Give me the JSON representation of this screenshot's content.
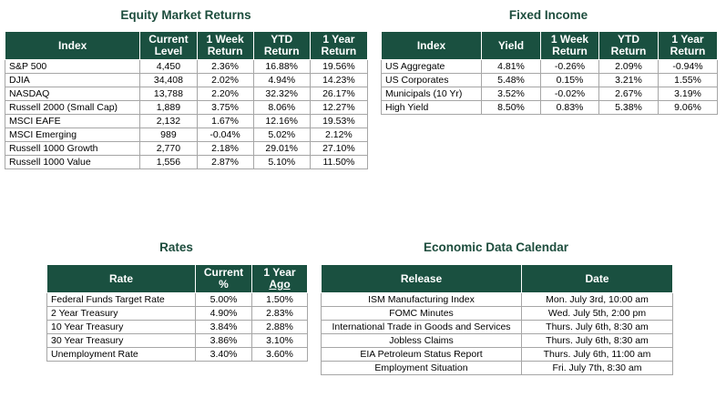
{
  "equity": {
    "title": "Equity Market Returns",
    "headers": {
      "index": "Index",
      "level1": "Current",
      "level2": "Level",
      "week1": "1 Week",
      "week2": "Return",
      "ytd1": "YTD",
      "ytd2": "Return",
      "year1": "1 Year",
      "year2": "Return"
    },
    "rows": [
      {
        "name": "S&P 500",
        "level": "4,450",
        "week": "2.36%",
        "ytd": "16.88%",
        "year": "19.56%"
      },
      {
        "name": "DJIA",
        "level": "34,408",
        "week": "2.02%",
        "ytd": "4.94%",
        "year": "14.23%"
      },
      {
        "name": "NASDAQ",
        "level": "13,788",
        "week": "2.20%",
        "ytd": "32.32%",
        "year": "26.17%"
      },
      {
        "name": "Russell 2000 (Small Cap)",
        "level": "1,889",
        "week": "3.75%",
        "ytd": "8.06%",
        "year": "12.27%"
      },
      {
        "name": "MSCI EAFE",
        "level": "2,132",
        "week": "1.67%",
        "ytd": "12.16%",
        "year": "19.53%"
      },
      {
        "name": "MSCI Emerging",
        "level": "989",
        "week": "-0.04%",
        "ytd": "5.02%",
        "year": "2.12%"
      },
      {
        "name": "Russell 1000 Growth",
        "level": "2,770",
        "week": "2.18%",
        "ytd": "29.01%",
        "year": "27.10%"
      },
      {
        "name": "Russell 1000 Value",
        "level": "1,556",
        "week": "2.87%",
        "ytd": "5.10%",
        "year": "11.50%"
      }
    ]
  },
  "fixed": {
    "title": "Fixed Income",
    "headers": {
      "index": "Index",
      "yield": "Yield",
      "week1": "1 Week",
      "week2": "Return",
      "ytd1": "YTD",
      "ytd2": "Return",
      "year1": "1 Year",
      "year2": "Return"
    },
    "rows": [
      {
        "name": "US Aggregate",
        "yield": "4.81%",
        "week": "-0.26%",
        "ytd": "2.09%",
        "year": "-0.94%"
      },
      {
        "name": "US Corporates",
        "yield": "5.48%",
        "week": "0.15%",
        "ytd": "3.21%",
        "year": "1.55%"
      },
      {
        "name": "Municipals (10 Yr)",
        "yield": "3.52%",
        "week": "-0.02%",
        "ytd": "2.67%",
        "year": "3.19%"
      },
      {
        "name": "High Yield",
        "yield": "8.50%",
        "week": "0.83%",
        "ytd": "5.38%",
        "year": "9.06%"
      }
    ]
  },
  "rates": {
    "title": "Rates",
    "headers": {
      "rate": "Rate",
      "current1": "Current",
      "current2": "%",
      "ago1": "1 Year",
      "ago2": "Ago"
    },
    "rows": [
      {
        "name": "Federal Funds Target Rate",
        "current": "5.00%",
        "ago": "1.50%"
      },
      {
        "name": "2 Year Treasury",
        "current": "4.90%",
        "ago": "2.83%"
      },
      {
        "name": "10 Year Treasury",
        "current": "3.84%",
        "ago": "2.88%"
      },
      {
        "name": "30 Year Treasury",
        "current": "3.86%",
        "ago": "3.10%"
      },
      {
        "name": "Unemployment Rate",
        "current": "3.40%",
        "ago": "3.60%"
      }
    ]
  },
  "calendar": {
    "title": "Economic Data Calendar",
    "headers": {
      "release": "Release",
      "date": "Date"
    },
    "rows": [
      {
        "release": "ISM Manufacturing Index",
        "date": "Mon. July 3rd, 10:00 am"
      },
      {
        "release": "FOMC Minutes",
        "date": "Wed. July 5th, 2:00 pm"
      },
      {
        "release": "International Trade in Goods and Services",
        "date": "Thurs. July 6th, 8:30 am"
      },
      {
        "release": "Jobless Claims",
        "date": "Thurs. July 6th, 8:30 am"
      },
      {
        "release": "EIA Petroleum Status Report",
        "date": "Thurs. July 6th, 11:00 am"
      },
      {
        "release": "Employment Situation",
        "date": "Fri. July 7th, 8:30 am"
      }
    ]
  },
  "colors": {
    "header_bg": "#1a5040",
    "title": "#1d4d3d",
    "border": "#a6a6a6"
  }
}
